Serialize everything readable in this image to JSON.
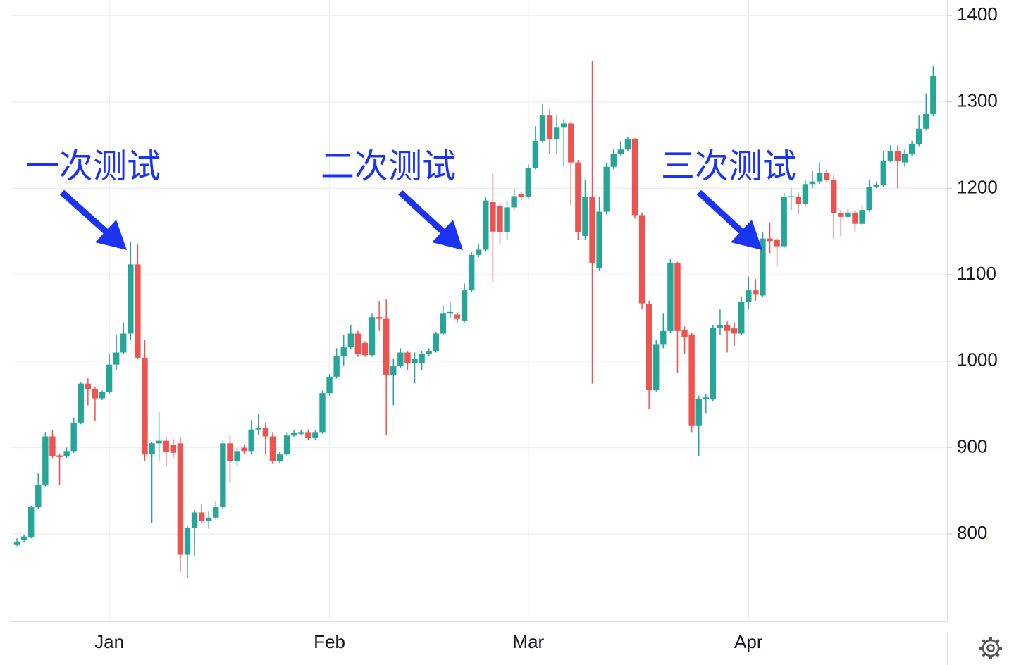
{
  "chart_data": {
    "type": "candlestick",
    "annotations": [
      "一次测试",
      "二次测试",
      "三次测试"
    ],
    "categories": [
      null,
      null,
      null,
      null,
      null,
      null,
      null,
      null,
      null,
      null,
      null,
      null,
      null,
      "Jan",
      null,
      null,
      null,
      null,
      null,
      null,
      null,
      null,
      null,
      null,
      null,
      null,
      null,
      null,
      null,
      null,
      null,
      null,
      null,
      null,
      null,
      null,
      null,
      null,
      null,
      null,
      null,
      null,
      null,
      null,
      "Feb",
      null,
      null,
      null,
      null,
      null,
      null,
      null,
      null,
      null,
      null,
      null,
      null,
      null,
      null,
      null,
      null,
      null,
      null,
      null,
      null,
      null,
      null,
      null,
      null,
      null,
      null,
      null,
      "Mar",
      null,
      null,
      null,
      null,
      null,
      null,
      null,
      null,
      null,
      null,
      null,
      null,
      null,
      null,
      null,
      null,
      null,
      null,
      null,
      null,
      null,
      null,
      null,
      null,
      null,
      null,
      null,
      null,
      null,
      null,
      "Apr",
      null,
      null,
      null,
      null,
      null,
      null,
      null,
      null,
      null,
      null,
      null,
      null,
      null,
      null,
      null,
      null,
      null,
      null,
      null,
      null,
      null,
      null,
      null,
      null,
      null,
      null
    ],
    "open": [
      788,
      793,
      796,
      831,
      857,
      913,
      891,
      890,
      896,
      929,
      974,
      968,
      957,
      964,
      996,
      1010,
      1032,
      1112,
      1004,
      892,
      905,
      908,
      903,
      905,
      776,
      807,
      825,
      815,
      819,
      831,
      905,
      884,
      900,
      896,
      921,
      923,
      913,
      884,
      892,
      914,
      916,
      918,
      911,
      918,
      963,
      982,
      1006,
      1016,
      1032,
      1021,
      1007,
      1051,
      1049,
      984,
      994,
      1010,
      998,
      998,
      1008,
      1012,
      1032,
      1055,
      1054,
      1047,
      1082,
      1123,
      1129,
      1184,
      1180,
      1149,
      1178,
      1193,
      1190,
      1224,
      1255,
      1285,
      1257,
      1271,
      1275,
      1230,
      1145,
      1190,
      1108,
      1173,
      1225,
      1240,
      1245,
      1257,
      1169,
      1066,
      967,
      1019,
      1035,
      1114,
      1036,
      1031,
      925,
      956,
      956,
      1039,
      1042,
      1038,
      1032,
      1069,
      1082,
      1076,
      1142,
      1141,
      1133,
      1190,
      1190,
      1182,
      1205,
      1208,
      1218,
      1210,
      1171,
      1167,
      1172,
      1159,
      1175,
      1202,
      1204,
      1232,
      1243,
      1230,
      1240,
      1251,
      1269,
      1286
    ],
    "high": [
      795,
      799,
      832,
      870,
      918,
      920,
      893,
      900,
      935,
      976,
      980,
      970,
      966,
      1008,
      1030,
      1045,
      1138,
      1135,
      1025,
      907,
      941,
      912,
      910,
      912,
      810,
      828,
      835,
      826,
      838,
      908,
      914,
      900,
      903,
      932,
      939,
      929,
      918,
      895,
      918,
      920,
      920,
      921,
      920,
      966,
      985,
      1015,
      1030,
      1042,
      1035,
      1023,
      1055,
      1070,
      1072,
      1003,
      1015,
      1012,
      1010,
      1012,
      1015,
      1034,
      1065,
      1068,
      1056,
      1090,
      1126,
      1135,
      1190,
      1218,
      1182,
      1185,
      1200,
      1196,
      1228,
      1272,
      1298,
      1292,
      1285,
      1280,
      1278,
      1233,
      1210,
      1348,
      1190,
      1230,
      1245,
      1255,
      1260,
      1258,
      1172,
      1070,
      1025,
      1055,
      1118,
      1115,
      1040,
      1033,
      960,
      962,
      1042,
      1060,
      1046,
      1045,
      1075,
      1098,
      1095,
      1150,
      1160,
      1143,
      1195,
      1200,
      1195,
      1210,
      1220,
      1230,
      1222,
      1215,
      1175,
      1176,
      1175,
      1180,
      1210,
      1208,
      1243,
      1250,
      1250,
      1245,
      1255,
      1285,
      1310,
      1342
    ],
    "low": [
      786,
      791,
      795,
      829,
      855,
      888,
      857,
      888,
      894,
      927,
      949,
      931,
      955,
      962,
      990,
      1008,
      1025,
      1002,
      884,
      813,
      885,
      878,
      888,
      756,
      749,
      775,
      812,
      806,
      817,
      828,
      859,
      878,
      893,
      892,
      915,
      893,
      881,
      882,
      890,
      912,
      914,
      909,
      909,
      916,
      960,
      980,
      995,
      1014,
      1005,
      1005,
      1005,
      1035,
      915,
      949,
      992,
      990,
      975,
      990,
      1006,
      1010,
      1030,
      1050,
      1045,
      1045,
      1080,
      1120,
      1127,
      1092,
      1135,
      1140,
      1175,
      1186,
      1188,
      1222,
      1253,
      1240,
      1240,
      1225,
      1180,
      1140,
      1140,
      974,
      1105,
      1170,
      1222,
      1238,
      1243,
      1165,
      1060,
      945,
      965,
      1015,
      1033,
      986,
      1008,
      918,
      890,
      940,
      954,
      1030,
      1010,
      1018,
      1030,
      1060,
      1070,
      1074,
      1125,
      1110,
      1131,
      1175,
      1170,
      1180,
      1200,
      1205,
      1208,
      1142,
      1145,
      1165,
      1150,
      1157,
      1173,
      1200,
      1202,
      1230,
      1200,
      1225,
      1238,
      1249,
      1267,
      1284
    ],
    "close": [
      791,
      797,
      831,
      857,
      913,
      890,
      889,
      896,
      929,
      974,
      968,
      957,
      964,
      996,
      1010,
      1032,
      1112,
      1004,
      892,
      905,
      908,
      895,
      894,
      776,
      807,
      825,
      815,
      819,
      831,
      905,
      884,
      896,
      896,
      921,
      923,
      913,
      884,
      892,
      914,
      917,
      918,
      911,
      918,
      963,
      982,
      1006,
      1016,
      1032,
      1008,
      1007,
      1051,
      1049,
      984,
      994,
      1010,
      998,
      1003,
      1008,
      1012,
      1032,
      1055,
      1057,
      1049,
      1082,
      1123,
      1129,
      1186,
      1150,
      1149,
      1178,
      1191,
      1190,
      1224,
      1255,
      1285,
      1257,
      1271,
      1275,
      1230,
      1149,
      1190,
      1114,
      1173,
      1225,
      1240,
      1245,
      1257,
      1169,
      1067,
      967,
      1019,
      1035,
      1114,
      1035,
      1028,
      925,
      956,
      958,
      1039,
      1042,
      1035,
      1032,
      1069,
      1082,
      1077,
      1142,
      1139,
      1133,
      1190,
      1191,
      1182,
      1205,
      1208,
      1218,
      1210,
      1171,
      1167,
      1172,
      1159,
      1175,
      1202,
      1204,
      1232,
      1243,
      1232,
      1240,
      1251,
      1269,
      1286,
      1330
    ],
    "up_color": "#26a69a",
    "down_color": "#ef5350",
    "ylim": [
      699,
      1418
    ],
    "yticks": [
      800,
      900,
      1000,
      1100,
      1200,
      1300,
      1400
    ],
    "grid": true
  }
}
